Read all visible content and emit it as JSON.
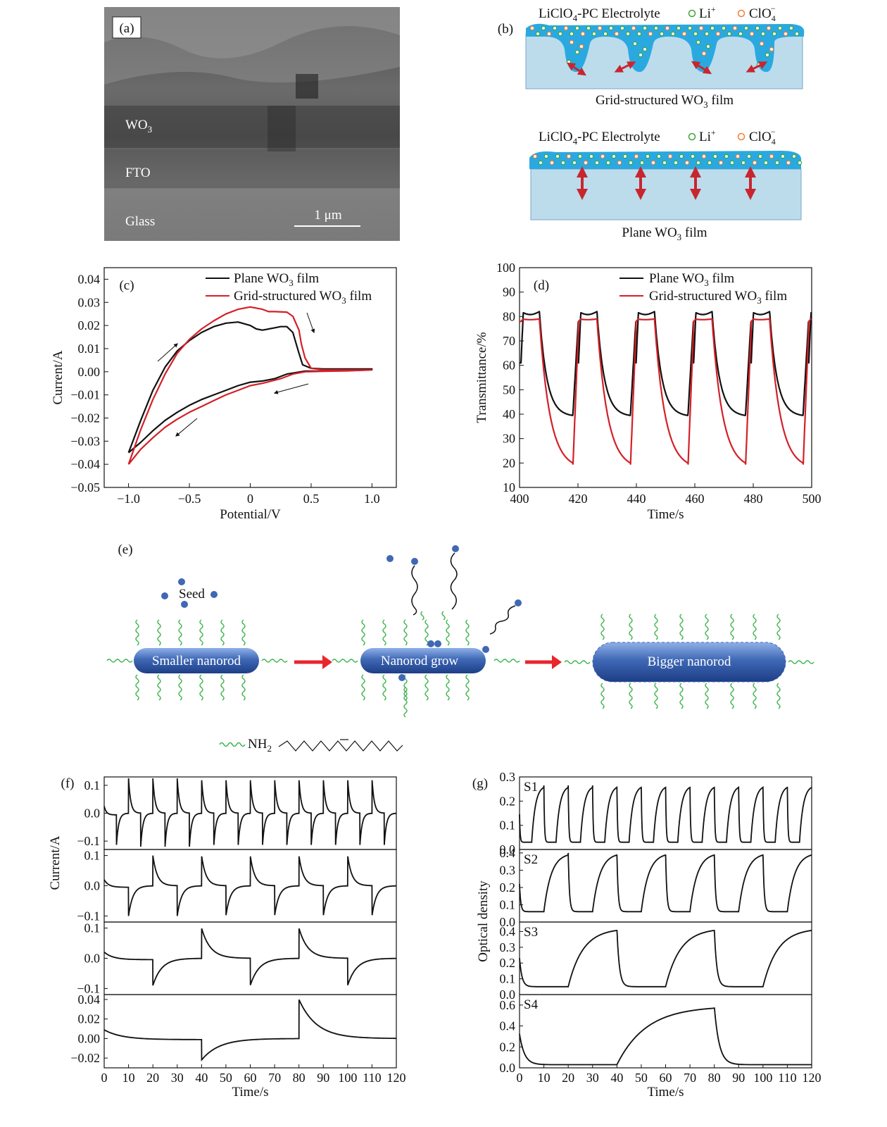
{
  "colors": {
    "black": "#111111",
    "red": "#d32027",
    "electrolyte": "#2aa9e0",
    "film": "#bcdcec",
    "rod": "#3f68b5",
    "ligand": "#3cb44b",
    "arrow": "#e8262b",
    "li_ion": "#3fa535",
    "clo4_ion": "#f07f32",
    "double_arrow": "#c8262f"
  },
  "panel_a": {
    "label": "(a)",
    "wo3": "WO",
    "wo3_sub": "3",
    "fto": "FTO",
    "glass": "Glass",
    "scale": "1 μm"
  },
  "panel_b": {
    "label": "(b)",
    "legend_prefix": "LiClO",
    "legend_sub": "4",
    "legend_suffix": "-PC Electrolyte",
    "li": "Li",
    "li_sup": "+",
    "clo": "ClO",
    "clo_sub": "4",
    "clo_sup": "−",
    "grid_caption": "Grid-structured WO",
    "grid_caption_sub": "3",
    "grid_caption_tail": " film",
    "plane_caption": "Plane WO",
    "plane_caption_sub": "3",
    "plane_caption_tail": " film"
  },
  "panel_e": {
    "label": "(e)",
    "seed": "Seed",
    "rod1": "Smaller nanorod",
    "rod2": "Nanorod grow",
    "rod3": "Bigger nanorod",
    "amine": "NH",
    "amine_sub": "2"
  },
  "chart_data": [
    {
      "id": "c",
      "type": "line",
      "panel_label": "(c)",
      "xlabel": "Potential/V",
      "ylabel": "Current/A",
      "xlim": [
        -1.2,
        1.2
      ],
      "ylim": [
        -0.05,
        0.045
      ],
      "xticks": [
        -1.0,
        -0.5,
        0,
        0.5,
        1.0
      ],
      "xtick_labels": [
        "−1.0",
        "−0.5",
        "0",
        "0.5",
        "1.0"
      ],
      "yticks": [
        0.04,
        0.03,
        0.02,
        0.01,
        0.0,
        -0.01,
        -0.02,
        -0.03,
        -0.04,
        -0.05
      ],
      "ytick_labels": [
        "0.04",
        "0.03",
        "0.02",
        "0.01",
        "0.00",
        "−0.01",
        "−0.02",
        "−0.03",
        "−0.04",
        "−0.05"
      ],
      "legend": [
        {
          "prefix": "Plane WO",
          "sub": "3",
          "suffix": " film",
          "color": "#111111"
        },
        {
          "prefix": "Grid-structured WO",
          "sub": "3",
          "suffix": " film",
          "color": "#d32027"
        }
      ],
      "series": [
        {
          "name": "Plane WO3 film",
          "color": "#111111",
          "points": [
            [
              -1.0,
              -0.035
            ],
            [
              -0.9,
              -0.021
            ],
            [
              -0.8,
              -0.008
            ],
            [
              -0.7,
              0.002
            ],
            [
              -0.6,
              0.009
            ],
            [
              -0.5,
              0.0135
            ],
            [
              -0.4,
              0.017
            ],
            [
              -0.3,
              0.0195
            ],
            [
              -0.2,
              0.021
            ],
            [
              -0.1,
              0.0215
            ],
            [
              0.0,
              0.02
            ],
            [
              0.05,
              0.0185
            ],
            [
              0.1,
              0.018
            ],
            [
              0.2,
              0.019
            ],
            [
              0.25,
              0.0195
            ],
            [
              0.3,
              0.0195
            ],
            [
              0.35,
              0.017
            ],
            [
              0.4,
              0.008
            ],
            [
              0.43,
              0.003
            ],
            [
              0.5,
              0.0015
            ],
            [
              0.6,
              0.0012
            ],
            [
              0.8,
              0.0012
            ],
            [
              1.0,
              0.0012
            ],
            [
              0.8,
              0.0005
            ],
            [
              0.6,
              0.0003
            ],
            [
              0.45,
              0.0003
            ],
            [
              0.3,
              -0.001
            ],
            [
              0.2,
              -0.003
            ],
            [
              0.1,
              -0.004
            ],
            [
              0.0,
              -0.0045
            ],
            [
              -0.1,
              -0.006
            ],
            [
              -0.2,
              -0.008
            ],
            [
              -0.3,
              -0.01
            ],
            [
              -0.4,
              -0.012
            ],
            [
              -0.5,
              -0.0145
            ],
            [
              -0.6,
              -0.0175
            ],
            [
              -0.7,
              -0.021
            ],
            [
              -0.8,
              -0.0255
            ],
            [
              -0.9,
              -0.0305
            ],
            [
              -1.0,
              -0.035
            ]
          ]
        },
        {
          "name": "Grid-structured WO3 film",
          "color": "#d32027",
          "points": [
            [
              -1.0,
              -0.04
            ],
            [
              -0.9,
              -0.025
            ],
            [
              -0.8,
              -0.012
            ],
            [
              -0.7,
              -0.001
            ],
            [
              -0.6,
              0.008
            ],
            [
              -0.5,
              0.014
            ],
            [
              -0.4,
              0.0185
            ],
            [
              -0.3,
              0.022
            ],
            [
              -0.2,
              0.025
            ],
            [
              -0.1,
              0.027
            ],
            [
              0.0,
              0.028
            ],
            [
              0.1,
              0.027
            ],
            [
              0.15,
              0.026
            ],
            [
              0.2,
              0.026
            ],
            [
              0.3,
              0.0258
            ],
            [
              0.35,
              0.024
            ],
            [
              0.4,
              0.018
            ],
            [
              0.42,
              0.012
            ],
            [
              0.45,
              0.006
            ],
            [
              0.5,
              0.0015
            ],
            [
              0.6,
              0.0008
            ],
            [
              0.8,
              0.0008
            ],
            [
              1.0,
              0.0008
            ],
            [
              0.8,
              0.0004
            ],
            [
              0.6,
              0.0002
            ],
            [
              0.45,
              0.0
            ],
            [
              0.35,
              -0.001
            ],
            [
              0.25,
              -0.003
            ],
            [
              0.1,
              -0.005
            ],
            [
              0.0,
              -0.006
            ],
            [
              -0.1,
              -0.008
            ],
            [
              -0.2,
              -0.01
            ],
            [
              -0.3,
              -0.0125
            ],
            [
              -0.4,
              -0.015
            ],
            [
              -0.5,
              -0.0175
            ],
            [
              -0.6,
              -0.0205
            ],
            [
              -0.7,
              -0.024
            ],
            [
              -0.8,
              -0.0285
            ],
            [
              -0.9,
              -0.0335
            ],
            [
              -1.0,
              -0.04
            ]
          ]
        }
      ]
    },
    {
      "id": "d",
      "type": "line",
      "panel_label": "(d)",
      "xlabel": "Time/s",
      "ylabel": "Transmittance/%",
      "xlim": [
        400,
        500
      ],
      "ylim": [
        10,
        100
      ],
      "xticks": [
        400,
        420,
        440,
        460,
        480,
        500
      ],
      "xtick_labels": [
        "400",
        "420",
        "440",
        "460",
        "480",
        "500"
      ],
      "yticks": [
        100,
        90,
        80,
        70,
        60,
        50,
        40,
        30,
        20,
        10
      ],
      "ytick_labels": [
        "100",
        "90",
        "80",
        "70",
        "60",
        "50",
        "40",
        "30",
        "20",
        "10"
      ],
      "legend": [
        {
          "prefix": "Plane WO",
          "sub": "3",
          "suffix": " film",
          "color": "#111111"
        },
        {
          "prefix": "Grid-structured WO",
          "sub": "3",
          "suffix": " film",
          "color": "#d32027"
        }
      ],
      "series": [
        {
          "name": "Plane WO3 film",
          "color": "#111111",
          "period": 19.7,
          "x0": 400.5,
          "bleach_hi": 82,
          "colored_lo": 39,
          "start": 61
        },
        {
          "name": "Grid-structured WO3 film",
          "color": "#d32027",
          "period": 19.7,
          "x0": 400.5,
          "bleach_hi": 79,
          "colored_lo": 17.5,
          "start": 78
        }
      ]
    },
    {
      "id": "f",
      "type": "line",
      "panel_label": "(f)",
      "xlabel": "Time/s",
      "ylabel": "Current/A",
      "xlim": [
        0,
        120
      ],
      "xticks": [
        0,
        10,
        20,
        30,
        40,
        50,
        60,
        70,
        80,
        90,
        100,
        110,
        120
      ],
      "xtick_labels": [
        "0",
        "10",
        "20",
        "30",
        "40",
        "50",
        "60",
        "70",
        "80",
        "90",
        "100",
        "110",
        "120"
      ],
      "subplots": [
        {
          "half_period": 5,
          "ylim": [
            -0.13,
            0.13
          ],
          "yticks": [
            0.1,
            0.0,
            -0.1
          ],
          "ytick_labels": [
            "0.1",
            "0.0",
            "−0.1"
          ],
          "peak": 0.125,
          "trough": -0.12
        },
        {
          "half_period": 10,
          "ylim": [
            -0.12,
            0.12
          ],
          "yticks": [
            0.1,
            0.0,
            -0.1
          ],
          "ytick_labels": [
            "0.1",
            "0.0",
            "−0.1"
          ],
          "peak": 0.1,
          "trough": -0.1
        },
        {
          "half_period": 20,
          "ylim": [
            -0.12,
            0.12
          ],
          "yticks": [
            0.1,
            0.0,
            -0.1
          ],
          "ytick_labels": [
            "0.1",
            "0.0",
            "−0.1"
          ],
          "peak": 0.1,
          "trough": -0.09
        },
        {
          "half_period": 40,
          "ylim": [
            -0.03,
            0.045
          ],
          "yticks": [
            0.04,
            0.02,
            0.0,
            -0.02
          ],
          "ytick_labels": [
            "0.04",
            "0.02",
            "0.00",
            "−0.02"
          ],
          "peak": 0.04,
          "trough": -0.022
        }
      ]
    },
    {
      "id": "g",
      "type": "line",
      "panel_label": "(g)",
      "xlabel": "Time/s",
      "ylabel": "Optical density",
      "xlim": [
        0,
        120
      ],
      "xticks": [
        0,
        10,
        20,
        30,
        40,
        50,
        60,
        70,
        80,
        90,
        100,
        110,
        120
      ],
      "xtick_labels": [
        "0",
        "10",
        "20",
        "30",
        "40",
        "50",
        "60",
        "70",
        "80",
        "90",
        "100",
        "110",
        "120"
      ],
      "subplots": [
        {
          "name": "S1",
          "half_period": 5,
          "ylim": [
            0,
            0.3
          ],
          "yticks": [
            0.3,
            0.2,
            0.1,
            0.0
          ],
          "ytick_labels": [
            "0.3",
            "0.2",
            "0.1",
            "0.0"
          ],
          "hi": 0.265,
          "lo": 0.03
        },
        {
          "name": "S2",
          "half_period": 10,
          "ylim": [
            0,
            0.42
          ],
          "yticks": [
            0.4,
            0.3,
            0.2,
            0.1,
            0.0
          ],
          "ytick_labels": [
            "0.4",
            "0.3",
            "0.2",
            "0.1",
            "0.0"
          ],
          "hi": 0.4,
          "lo": 0.06
        },
        {
          "name": "S3",
          "half_period": 20,
          "ylim": [
            0,
            0.46
          ],
          "yticks": [
            0.4,
            0.3,
            0.2,
            0.1,
            0.0
          ],
          "ytick_labels": [
            "0.4",
            "0.3",
            "0.2",
            "0.1",
            "0.0"
          ],
          "hi": 0.42,
          "lo": 0.05
        },
        {
          "name": "S4",
          "half_period": 40,
          "ylim": [
            0,
            0.7
          ],
          "yticks": [
            0.6,
            0.4,
            0.2,
            0.0
          ],
          "ytick_labels": [
            "0.6",
            "0.4",
            "0.2",
            "0.0"
          ],
          "hi": 0.59,
          "lo": 0.03
        }
      ]
    }
  ]
}
